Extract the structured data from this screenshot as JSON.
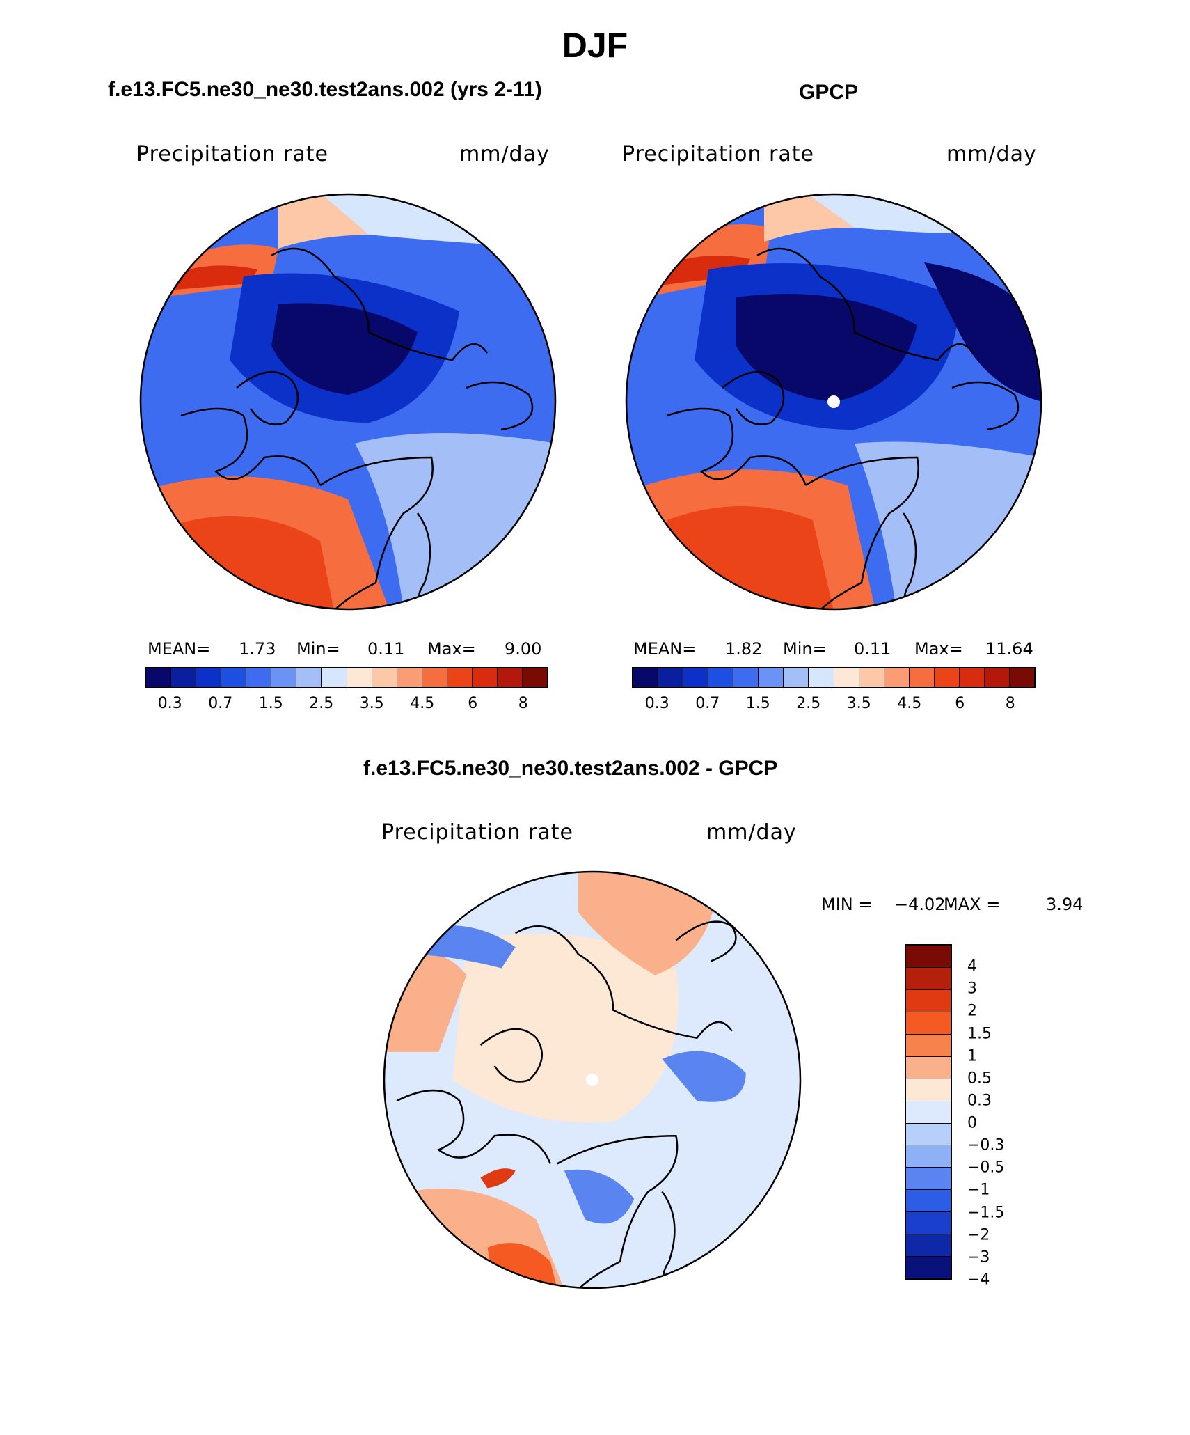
{
  "figure": {
    "title": "DJF"
  },
  "panels": {
    "model": {
      "title": "f.e13.FC5.ne30_ne30.test2ans.002 (yrs 2-11)",
      "variable": "Precipitation rate",
      "units": "mm/day",
      "mean_label": "MEAN=",
      "mean": "1.73",
      "min_label": "Min=",
      "min": "0.11",
      "max_label": "Max=",
      "max": "9.00"
    },
    "obs": {
      "title": "GPCP",
      "variable": "Precipitation rate",
      "units": "mm/day",
      "mean_label": "MEAN=",
      "mean": "1.82",
      "min_label": "Min=",
      "min": "0.11",
      "max_label": "Max=",
      "max": "11.64"
    },
    "diff": {
      "title": "f.e13.FC5.ne30_ne30.test2ans.002 - GPCP",
      "variable": "Precipitation rate",
      "units": "mm/day",
      "min_label": "MIN =",
      "min": "−4.02",
      "max_label": "MAX =",
      "max": "3.94"
    }
  },
  "colorbar_abs": {
    "colors": [
      "#08086b",
      "#0a1ea0",
      "#0b31c9",
      "#1d4fe3",
      "#3d6cf0",
      "#6b93f5",
      "#a4bff8",
      "#d6e6fc",
      "#fde8d6",
      "#fcc8a8",
      "#fa9c74",
      "#f66e40",
      "#ea4418",
      "#d92b0e",
      "#b4180a",
      "#7a0a04"
    ],
    "ticks": [
      "0.3",
      "0.7",
      "1.5",
      "2.5",
      "3.5",
      "4.5",
      "6",
      "8"
    ]
  },
  "colorbar_diff": {
    "colors": [
      "#7a0a04",
      "#b4200c",
      "#e03a12",
      "#f55a22",
      "#f8824c",
      "#fab08a",
      "#fde8d6",
      "#ddeafd",
      "#b7cffb",
      "#8db0f7",
      "#5a85f0",
      "#2d5de6",
      "#1a3fcc",
      "#0e28a8",
      "#08127a"
    ],
    "ticks": [
      "4",
      "3",
      "2",
      "1.5",
      "1",
      "0.5",
      "0.3",
      "0",
      "−0.3",
      "−0.5",
      "−1",
      "−1.5",
      "−2",
      "−3",
      "−4"
    ]
  },
  "map_colors": {
    "deep": "#08086b",
    "dark_blue": "#0b31c9",
    "blue": "#3d6cf0",
    "light_blue": "#a4bff8",
    "pale": "#fde8d6",
    "orange": "#f66e40",
    "red": "#d92b0e",
    "pole_marker": "#ffffff"
  }
}
